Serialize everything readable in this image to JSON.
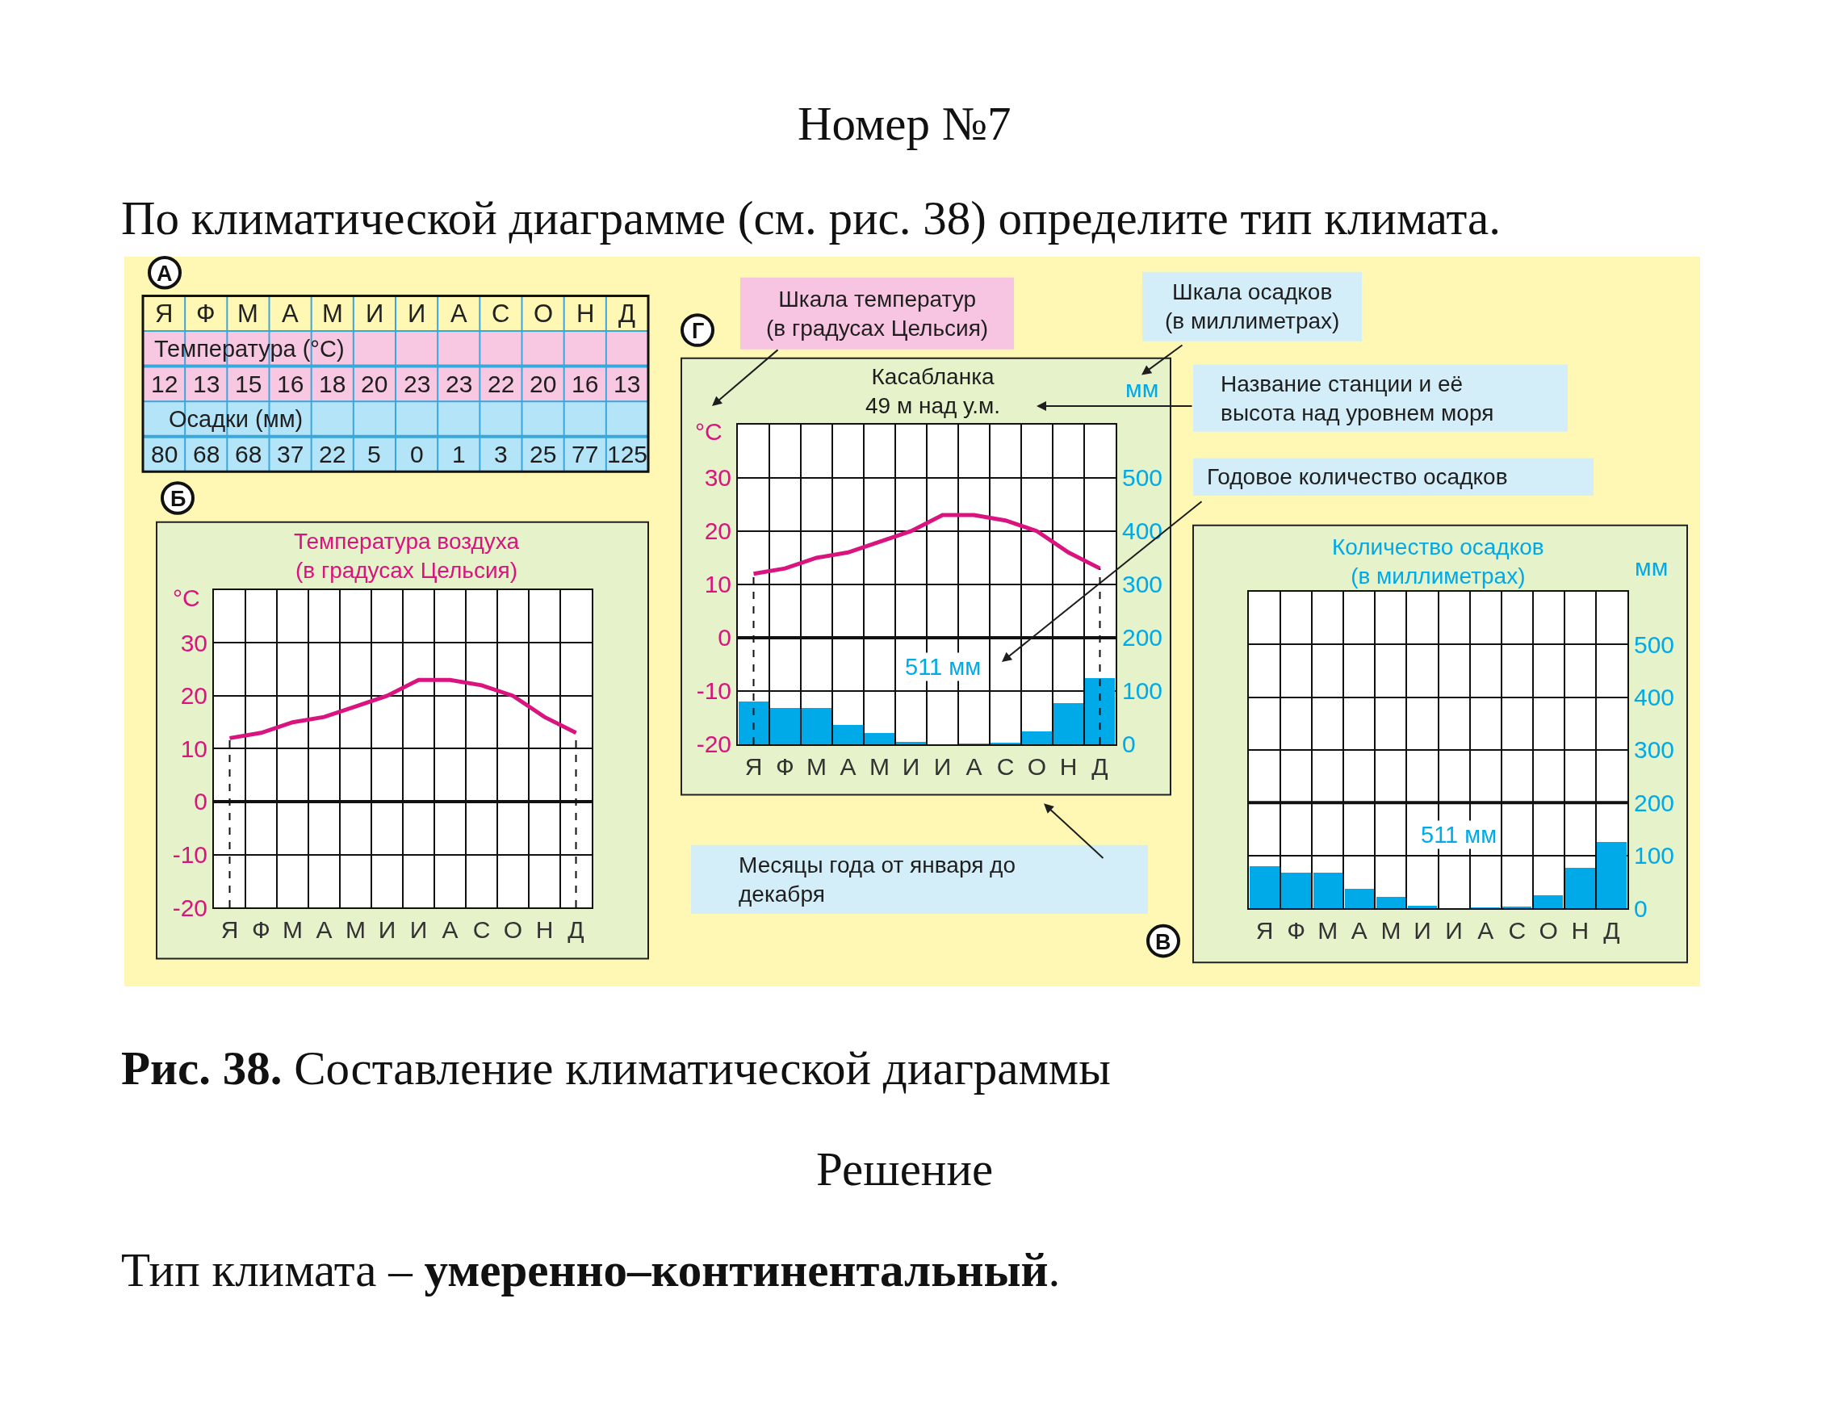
{
  "chart_data": [
    {
      "type": "other",
      "title": "Номер №7",
      "subtitle": "По климатической диаграмме (см. рис. 38) определите тип климата."
    },
    {
      "type": "other",
      "categories": [
        "Я",
        "Ф",
        "М",
        "А",
        "М",
        "И",
        "И",
        "А",
        "С",
        "О",
        "Н",
        "Д"
      ],
      "series": [
        {
          "name": "Температура (°C)",
          "color": "#f8c8e3",
          "values": [
            12,
            13,
            15,
            16,
            18,
            20,
            23,
            23,
            22,
            20,
            16,
            13
          ]
        },
        {
          "name": "Осадки (мм)",
          "color": "#b4e4f7",
          "values": [
            80,
            68,
            68,
            37,
            22,
            5,
            0,
            1,
            3,
            25,
            77,
            125
          ]
        }
      ],
      "data_labels": true,
      "annotations": [
        "А"
      ]
    },
    {
      "type": "line",
      "title": "Температура воздуха\n(в градусах Цельсия)",
      "ylabel": "°C",
      "categories": [
        "Я",
        "Ф",
        "М",
        "А",
        "М",
        "И",
        "И",
        "А",
        "С",
        "О",
        "Н",
        "Д"
      ],
      "series": [
        {
          "color": "#d9147f",
          "values": [
            12,
            13,
            15,
            16,
            18,
            20,
            23,
            23,
            22,
            20,
            16,
            13
          ]
        }
      ],
      "ylim": [
        -20,
        40
      ],
      "yticks": [
        -20,
        -10,
        0,
        10,
        20,
        30
      ],
      "grid": true,
      "ref_lines": [
        {
          "axis": "y",
          "value": 0
        },
        {
          "axis": "x",
          "value": "Я",
          "line_style": "dashed"
        },
        {
          "axis": "x",
          "value": "Д",
          "line_style": "dashed"
        }
      ],
      "annotations": [
        "Б"
      ]
    },
    {
      "type": "line",
      "title": "Касабланка\n49 м над у.м.",
      "ylabel": "°C",
      "y2label": "мм",
      "categories": [
        "Я",
        "Ф",
        "М",
        "А",
        "М",
        "И",
        "И",
        "А",
        "С",
        "О",
        "Н",
        "Д"
      ],
      "series": [
        {
          "type": "bar",
          "axis": "y2",
          "color": "#00a9e8",
          "values": [
            80,
            68,
            68,
            37,
            22,
            5,
            0,
            1,
            3,
            25,
            77,
            125
          ]
        },
        {
          "type": "line",
          "color": "#d9147f",
          "values": [
            12,
            13,
            15,
            16,
            18,
            20,
            23,
            23,
            22,
            20,
            16,
            13
          ]
        }
      ],
      "ylim": [
        -20,
        40
      ],
      "yticks": [
        -20,
        -10,
        0,
        10,
        20,
        30
      ],
      "y2lim": [
        0,
        600
      ],
      "y2ticks": [
        0,
        100,
        200,
        300,
        400,
        500
      ],
      "grid": true,
      "ref_lines": [
        {
          "axis": "y",
          "value": 0
        },
        {
          "axis": "x",
          "value": "Я",
          "line_style": "dashed"
        },
        {
          "axis": "x",
          "value": "Д",
          "line_style": "dashed"
        }
      ],
      "annotations": [
        "Г",
        "511 мм",
        "Шкала температур\n(в градусах Цельсия)",
        "Шкала осадков\n(в миллиметрах)",
        "Название станции и её\nвысота над уровнем моря",
        "Годовое количество осадков",
        "Месяцы года от января до\nдекабря"
      ]
    },
    {
      "type": "bar",
      "title": "Количество осадков\n(в миллиметрах)",
      "y2label": "мм",
      "categories": [
        "Я",
        "Ф",
        "М",
        "А",
        "М",
        "И",
        "И",
        "А",
        "С",
        "О",
        "Н",
        "Д"
      ],
      "series": [
        {
          "axis": "y2",
          "color": "#00a9e8",
          "values": [
            80,
            68,
            68,
            37,
            22,
            5,
            0,
            1,
            3,
            25,
            77,
            125
          ]
        }
      ],
      "y2lim": [
        0,
        600
      ],
      "y2ticks": [
        0,
        100,
        200,
        300,
        400,
        500
      ],
      "grid": true,
      "ref_lines": [
        {
          "axis": "y2",
          "value": 200
        }
      ],
      "annotations": [
        "В",
        "511 мм"
      ]
    },
    {
      "type": "other",
      "annotations": [
        "Рис. 38.",
        "Составление климатической диаграммы",
        "Решение",
        "Тип климата –",
        "умеренно–континентальный",
        "."
      ]
    }
  ]
}
